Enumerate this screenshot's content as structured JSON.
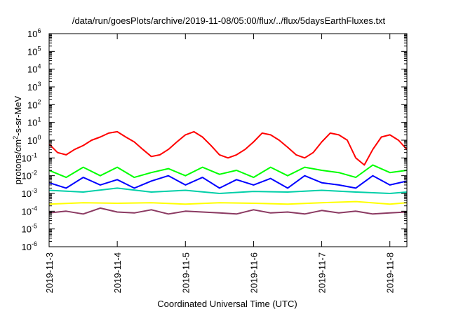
{
  "chart_data": {
    "type": "line",
    "title": "/data/run/goesPlots/archive/2019-11-08/05:00/flux/../flux/5daysEarthFluxes.txt",
    "xlabel": "Coordinated Universal Time (UTC)",
    "ylabel": "protons/cm2-s-sr-MeV",
    "ylabel_parts": [
      "protons/cm",
      "2",
      "-s-sr-MeV"
    ],
    "yscale": "log",
    "ylim_exponent": [
      -6,
      6
    ],
    "ylim": [
      1e-06,
      1000000.0
    ],
    "yticks": [
      {
        "base": "10",
        "exp": "6"
      },
      {
        "base": "10",
        "exp": "5"
      },
      {
        "base": "10",
        "exp": "4"
      },
      {
        "base": "10",
        "exp": "3"
      },
      {
        "base": "10",
        "exp": "2"
      },
      {
        "base": "10",
        "exp": "1"
      },
      {
        "base": "10",
        "exp": "0"
      },
      {
        "base": "10",
        "exp": "-1"
      },
      {
        "base": "10",
        "exp": "-2"
      },
      {
        "base": "10",
        "exp": "-3"
      },
      {
        "base": "10",
        "exp": "-4"
      },
      {
        "base": "10",
        "exp": "-5"
      },
      {
        "base": "10",
        "exp": "-6"
      }
    ],
    "xticks": [
      "2019-11-3",
      "2019-11-4",
      "2019-11-5",
      "2019-11-6",
      "2019-11-7",
      "2019-11-8"
    ],
    "xlim": [
      "2019-11-3 00:00",
      "2019-11-8 06:00"
    ],
    "grid": false,
    "legend": "none",
    "series": [
      {
        "color": "#ff0000",
        "x": [
          "2019-11-3 00:00",
          "2019-11-3 03:00",
          "2019-11-3 06:00",
          "2019-11-3 09:00",
          "2019-11-3 12:00",
          "2019-11-3 15:00",
          "2019-11-3 18:00",
          "2019-11-3 21:00",
          "2019-11-4 00:00",
          "2019-11-4 03:00",
          "2019-11-4 06:00",
          "2019-11-4 09:00",
          "2019-11-4 12:00",
          "2019-11-4 15:00",
          "2019-11-4 18:00",
          "2019-11-4 21:00",
          "2019-11-5 00:00",
          "2019-11-5 03:00",
          "2019-11-5 06:00",
          "2019-11-5 09:00",
          "2019-11-5 12:00",
          "2019-11-5 15:00",
          "2019-11-5 18:00",
          "2019-11-5 21:00",
          "2019-11-6 00:00",
          "2019-11-6 03:00",
          "2019-11-6 06:00",
          "2019-11-6 09:00",
          "2019-11-6 12:00",
          "2019-11-6 15:00",
          "2019-11-6 18:00",
          "2019-11-6 21:00",
          "2019-11-7 00:00",
          "2019-11-7 03:00",
          "2019-11-7 06:00",
          "2019-11-7 09:00",
          "2019-11-7 12:00",
          "2019-11-7 15:00",
          "2019-11-7 18:00",
          "2019-11-7 21:00",
          "2019-11-8 00:00",
          "2019-11-8 03:00",
          "2019-11-8 06:00"
        ],
        "values": [
          0.6,
          0.2,
          0.15,
          0.3,
          0.5,
          1.0,
          1.5,
          2.5,
          3.0,
          1.5,
          0.8,
          0.3,
          0.12,
          0.15,
          0.3,
          0.8,
          2.0,
          3.0,
          1.5,
          0.5,
          0.15,
          0.1,
          0.15,
          0.3,
          0.8,
          2.5,
          2.0,
          1.0,
          0.4,
          0.15,
          0.1,
          0.2,
          0.8,
          2.5,
          2.0,
          1.0,
          0.1,
          0.04,
          0.3,
          1.5,
          2.0,
          1.0,
          0.3
        ]
      },
      {
        "color": "#00ff00",
        "x": [
          "2019-11-3 00:00",
          "2019-11-3 06:00",
          "2019-11-3 12:00",
          "2019-11-3 18:00",
          "2019-11-4 00:00",
          "2019-11-4 06:00",
          "2019-11-4 12:00",
          "2019-11-4 18:00",
          "2019-11-5 00:00",
          "2019-11-5 06:00",
          "2019-11-5 12:00",
          "2019-11-5 18:00",
          "2019-11-6 00:00",
          "2019-11-6 06:00",
          "2019-11-6 12:00",
          "2019-11-6 18:00",
          "2019-11-7 00:00",
          "2019-11-7 06:00",
          "2019-11-7 12:00",
          "2019-11-7 18:00",
          "2019-11-8 00:00",
          "2019-11-8 06:00"
        ],
        "values": [
          0.02,
          0.008,
          0.03,
          0.01,
          0.03,
          0.008,
          0.015,
          0.025,
          0.01,
          0.03,
          0.012,
          0.02,
          0.008,
          0.03,
          0.01,
          0.03,
          0.02,
          0.015,
          0.008,
          0.04,
          0.015,
          0.02
        ]
      },
      {
        "color": "#0000ff",
        "x": [
          "2019-11-3 00:00",
          "2019-11-3 06:00",
          "2019-11-3 12:00",
          "2019-11-3 18:00",
          "2019-11-4 00:00",
          "2019-11-4 06:00",
          "2019-11-4 12:00",
          "2019-11-4 18:00",
          "2019-11-5 00:00",
          "2019-11-5 06:00",
          "2019-11-5 12:00",
          "2019-11-5 18:00",
          "2019-11-6 00:00",
          "2019-11-6 06:00",
          "2019-11-6 12:00",
          "2019-11-6 18:00",
          "2019-11-7 00:00",
          "2019-11-7 06:00",
          "2019-11-7 12:00",
          "2019-11-7 18:00",
          "2019-11-8 00:00",
          "2019-11-8 06:00"
        ],
        "values": [
          0.004,
          0.002,
          0.008,
          0.003,
          0.006,
          0.002,
          0.005,
          0.01,
          0.003,
          0.008,
          0.002,
          0.006,
          0.003,
          0.007,
          0.002,
          0.01,
          0.004,
          0.003,
          0.002,
          0.01,
          0.003,
          0.005
        ]
      },
      {
        "color": "#00cfa8",
        "x": [
          "2019-11-3 00:00",
          "2019-11-3 12:00",
          "2019-11-4 00:00",
          "2019-11-4 12:00",
          "2019-11-5 00:00",
          "2019-11-5 12:00",
          "2019-11-6 00:00",
          "2019-11-6 12:00",
          "2019-11-7 00:00",
          "2019-11-7 12:00",
          "2019-11-8 00:00",
          "2019-11-8 06:00"
        ],
        "values": [
          0.0015,
          0.0012,
          0.002,
          0.0012,
          0.0015,
          0.001,
          0.0013,
          0.0012,
          0.0015,
          0.0012,
          0.001,
          0.0012
        ]
      },
      {
        "color": "#ffff00",
        "x": [
          "2019-11-3 00:00",
          "2019-11-3 12:00",
          "2019-11-4 00:00",
          "2019-11-4 12:00",
          "2019-11-5 00:00",
          "2019-11-5 12:00",
          "2019-11-6 00:00",
          "2019-11-6 12:00",
          "2019-11-7 00:00",
          "2019-11-7 12:00",
          "2019-11-8 00:00",
          "2019-11-8 06:00"
        ],
        "values": [
          0.00025,
          0.0003,
          0.00028,
          0.0003,
          0.00025,
          0.0003,
          0.00028,
          0.00025,
          0.0003,
          0.00035,
          0.00025,
          0.0003
        ]
      },
      {
        "color": "#8b3a62",
        "x": [
          "2019-11-3 00:00",
          "2019-11-3 06:00",
          "2019-11-3 12:00",
          "2019-11-3 18:00",
          "2019-11-4 00:00",
          "2019-11-4 06:00",
          "2019-11-4 12:00",
          "2019-11-4 18:00",
          "2019-11-5 00:00",
          "2019-11-5 06:00",
          "2019-11-5 12:00",
          "2019-11-5 18:00",
          "2019-11-6 00:00",
          "2019-11-6 06:00",
          "2019-11-6 12:00",
          "2019-11-6 18:00",
          "2019-11-7 00:00",
          "2019-11-7 06:00",
          "2019-11-7 12:00",
          "2019-11-7 18:00",
          "2019-11-8 00:00",
          "2019-11-8 06:00"
        ],
        "values": [
          8e-05,
          0.0001,
          7e-05,
          0.00015,
          9e-05,
          8e-05,
          0.00012,
          7e-05,
          0.0001,
          9e-05,
          8e-05,
          7e-05,
          0.00012,
          8e-05,
          9e-05,
          7e-05,
          0.00011,
          8e-05,
          0.0001,
          7e-05,
          8e-05,
          9e-05
        ]
      }
    ]
  }
}
